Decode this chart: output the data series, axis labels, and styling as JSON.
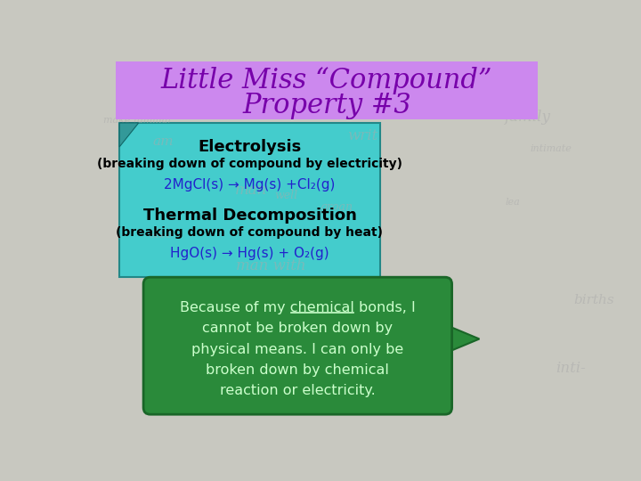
{
  "title_line1": "Little Miss “Compound”",
  "title_line2": "Property #3",
  "title_bg_color": "#cc88ee",
  "title_text_color": "#7700aa",
  "box1_bg": "#44cccc",
  "box1_title": "Electrolysis",
  "box1_sub": "(breaking down of compound by electricity)",
  "box1_eq": "2MgCl(s) → Mg(s) +Cl₂(g)",
  "box1_title2": "Thermal Decomposition",
  "box1_sub2": "(breaking down of compound by heat)",
  "box1_eq2": "HgO(s) → Hg(s) + O₂(g)",
  "box1_title_color": "#000000",
  "box1_sub_color": "#000000",
  "box1_eq_color": "#2222cc",
  "bubble_bg": "#2a8a3a",
  "bubble_text_color": "#ccffcc",
  "bg_color": "#c8c8c0"
}
